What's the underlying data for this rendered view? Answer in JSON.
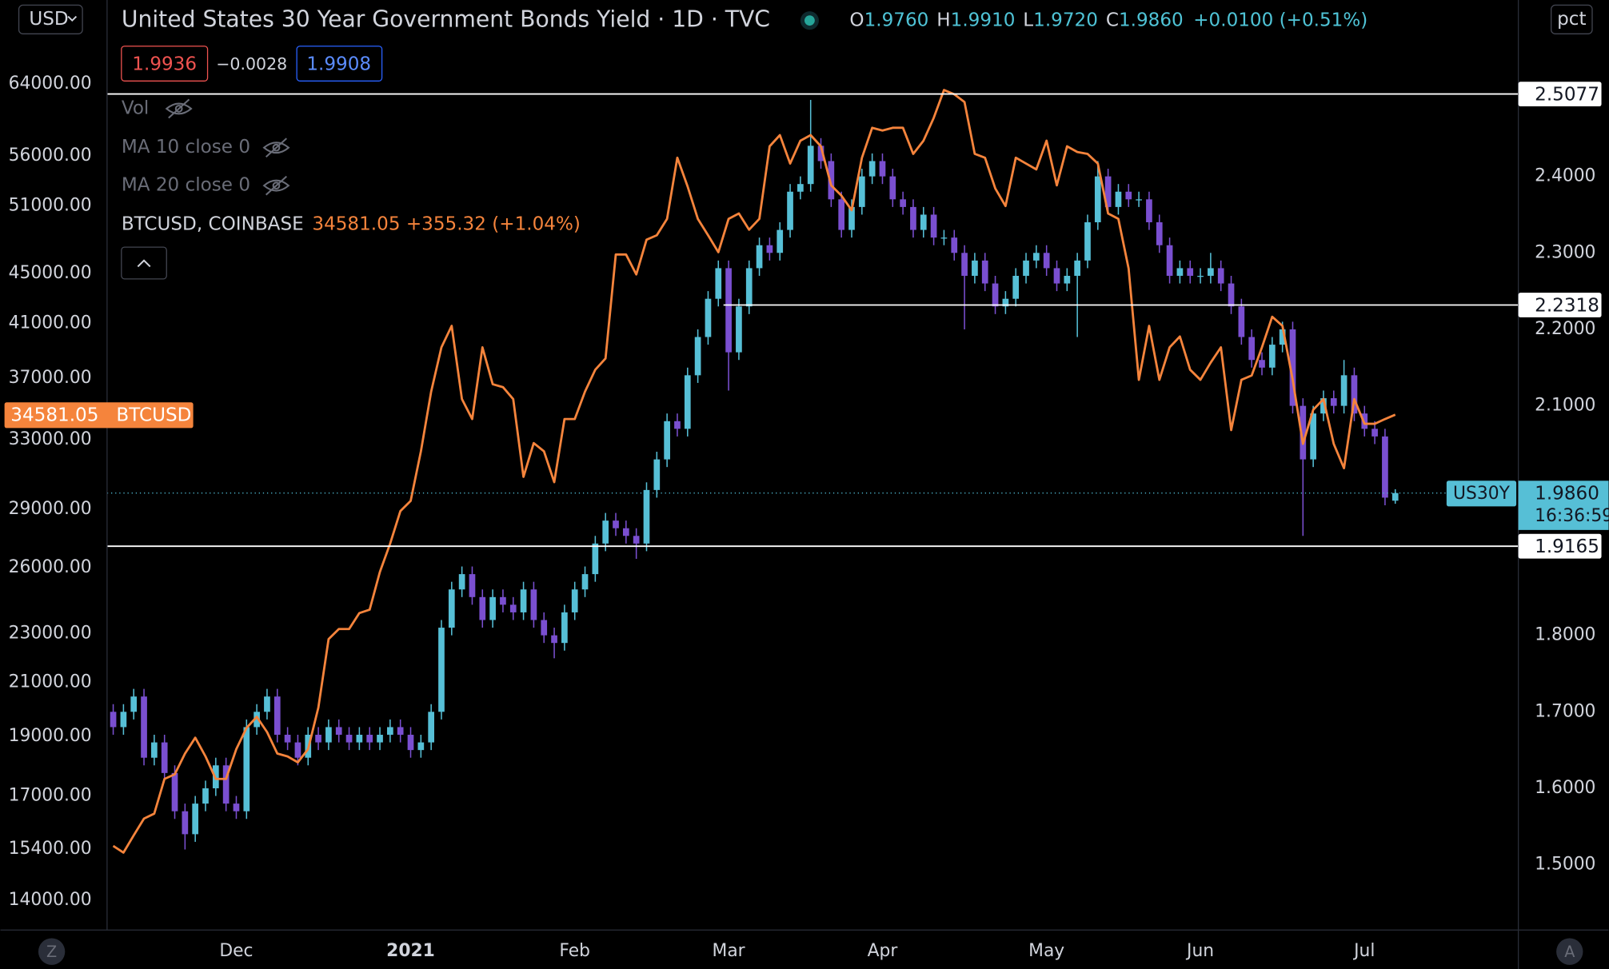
{
  "ui": {
    "title": "United States 30 Year Government Bonds Yield · 1D · TVC",
    "ohlc": [
      [
        "O",
        "1.9760"
      ],
      [
        "H",
        "1.9910"
      ],
      [
        "L",
        "1.9720"
      ],
      [
        "C",
        "1.9860"
      ]
    ],
    "change": "+0.0100 (+0.51%)",
    "bid": "1.9936",
    "spread": "−0.0028",
    "ask": "1.9908",
    "legend": [
      "Vol",
      "MA 10 close 0",
      "MA 20 close 0"
    ],
    "symbol": "BTCUSD, COINBASE",
    "symbol_quote": "34581.05 +355.32 (+1.04%)",
    "currency_button": "USD",
    "scale_button": "pct",
    "left_button": "Z",
    "right_button": "A"
  },
  "chart_data": {
    "type": "candlestick",
    "categories": [
      null,
      null,
      null,
      null,
      null,
      null,
      null,
      null,
      null,
      null,
      null,
      null,
      "Dec",
      null,
      null,
      null,
      null,
      null,
      null,
      null,
      null,
      null,
      null,
      null,
      null,
      null,
      null,
      null,
      null,
      "2021",
      null,
      null,
      null,
      null,
      null,
      null,
      null,
      null,
      null,
      null,
      null,
      null,
      null,
      null,
      null,
      "Feb",
      null,
      null,
      null,
      null,
      null,
      null,
      null,
      null,
      null,
      null,
      null,
      null,
      null,
      null,
      "Mar",
      null,
      null,
      null,
      null,
      null,
      null,
      null,
      null,
      null,
      null,
      null,
      null,
      null,
      null,
      "Apr",
      null,
      null,
      null,
      null,
      null,
      null,
      null,
      null,
      null,
      null,
      null,
      null,
      null,
      null,
      null,
      "May",
      null,
      null,
      null,
      null,
      null,
      null,
      null,
      null,
      null,
      null,
      null,
      null,
      null,
      null,
      "Jun",
      null,
      null,
      null,
      null,
      null,
      null,
      null,
      null,
      null,
      null,
      null,
      null,
      null,
      null,
      null,
      "Jul",
      null,
      null,
      null
    ],
    "ylim": [
      13245,
      74850
    ],
    "log_scale": true,
    "yticks": [
      {
        "value": 64000,
        "label": "64000.00"
      },
      {
        "value": 56000,
        "label": "56000.00"
      },
      {
        "value": 51000,
        "label": "51000.00"
      },
      {
        "value": 45000,
        "label": "45000.00"
      },
      {
        "value": 41000,
        "label": "41000.00"
      },
      {
        "value": 37000,
        "label": "37000.00"
      },
      {
        "value": 33000,
        "label": "33000.00"
      },
      {
        "value": 29000,
        "label": "29000.00"
      },
      {
        "value": 26000,
        "label": "26000.00"
      },
      {
        "value": 23000,
        "label": "23000.00"
      },
      {
        "value": 21000,
        "label": "21000.00"
      },
      {
        "value": 19000,
        "label": "19000.00"
      },
      {
        "value": 17000,
        "label": "17000.00"
      },
      {
        "value": 15400,
        "label": "15400.00"
      },
      {
        "value": 14000,
        "label": "14000.00"
      }
    ],
    "y2lim": [
      1.4147,
      2.6306
    ],
    "y2ticks": [
      {
        "value": 2.4,
        "label": "2.4000"
      },
      {
        "value": 2.3,
        "label": "2.3000"
      },
      {
        "value": 2.2,
        "label": "2.2000"
      },
      {
        "value": 2.1,
        "label": "2.1000"
      },
      {
        "value": 1.8,
        "label": "1.8000"
      },
      {
        "value": 1.7,
        "label": "1.7000"
      },
      {
        "value": 1.6,
        "label": "1.6000"
      },
      {
        "value": 1.5,
        "label": "1.5000"
      }
    ],
    "grid": false,
    "hlines": [
      2.5077,
      2.2318,
      1.9165
    ],
    "series": [
      {
        "name": "US30Y",
        "type": "candlestick",
        "axis": "y2",
        "up_color": "#56bfd6",
        "down_color": "#7a4fd0",
        "last_label": "1.9860",
        "countdown": "16:36:59",
        "open": [
          1.7,
          1.68,
          1.7,
          1.72,
          1.64,
          1.66,
          1.62,
          1.57,
          1.54,
          1.58,
          1.6,
          1.63,
          1.58,
          1.57,
          1.68,
          1.7,
          1.72,
          1.67,
          1.66,
          1.64,
          1.67,
          1.66,
          1.68,
          1.67,
          1.66,
          1.67,
          1.66,
          1.67,
          1.68,
          1.67,
          1.65,
          1.66,
          1.7,
          1.81,
          1.86,
          1.88,
          1.85,
          1.82,
          1.85,
          1.84,
          1.83,
          1.86,
          1.82,
          1.8,
          1.79,
          1.83,
          1.86,
          1.88,
          1.92,
          1.95,
          1.94,
          1.93,
          1.92,
          1.99,
          2.03,
          2.08,
          2.07,
          2.14,
          2.19,
          2.24,
          2.28,
          2.17,
          2.23,
          2.28,
          2.31,
          2.3,
          2.33,
          2.38,
          2.39,
          2.44,
          2.42,
          2.37,
          2.33,
          2.36,
          2.4,
          2.42,
          2.4,
          2.37,
          2.36,
          2.33,
          2.35,
          2.32,
          2.32,
          2.3,
          2.27,
          2.29,
          2.26,
          2.23,
          2.24,
          2.27,
          2.29,
          2.3,
          2.28,
          2.26,
          2.27,
          2.29,
          2.34,
          2.4,
          2.36,
          2.38,
          2.37,
          2.37,
          2.34,
          2.31,
          2.27,
          2.28,
          2.27,
          2.27,
          2.28,
          2.26,
          2.23,
          2.19,
          2.16,
          2.15,
          2.18,
          2.2,
          2.1,
          2.03,
          2.09,
          2.11,
          2.1,
          2.14,
          2.09,
          2.07,
          2.06,
          1.976
        ],
        "high": [
          1.71,
          1.71,
          1.73,
          1.73,
          1.67,
          1.67,
          1.63,
          1.58,
          1.59,
          1.61,
          1.64,
          1.64,
          1.59,
          1.69,
          1.71,
          1.73,
          1.73,
          1.68,
          1.67,
          1.68,
          1.68,
          1.69,
          1.69,
          1.68,
          1.68,
          1.68,
          1.68,
          1.69,
          1.69,
          1.68,
          1.67,
          1.71,
          1.82,
          1.87,
          1.89,
          1.89,
          1.86,
          1.86,
          1.86,
          1.85,
          1.87,
          1.87,
          1.83,
          1.81,
          1.84,
          1.87,
          1.89,
          1.93,
          1.96,
          1.96,
          1.95,
          1.94,
          2.0,
          2.04,
          2.09,
          2.09,
          2.15,
          2.2,
          2.25,
          2.29,
          2.29,
          2.24,
          2.29,
          2.32,
          2.32,
          2.34,
          2.39,
          2.4,
          2.5,
          2.45,
          2.43,
          2.38,
          2.37,
          2.41,
          2.43,
          2.43,
          2.41,
          2.38,
          2.37,
          2.36,
          2.36,
          2.33,
          2.33,
          2.31,
          2.3,
          2.3,
          2.27,
          2.25,
          2.28,
          2.3,
          2.31,
          2.31,
          2.29,
          2.28,
          2.3,
          2.35,
          2.42,
          2.41,
          2.39,
          2.39,
          2.38,
          2.38,
          2.35,
          2.32,
          2.29,
          2.29,
          2.28,
          2.3,
          2.29,
          2.27,
          2.24,
          2.2,
          2.17,
          2.19,
          2.21,
          2.21,
          2.11,
          2.1,
          2.12,
          2.12,
          2.16,
          2.15,
          2.1,
          2.08,
          2.07,
          1.991
        ],
        "low": [
          1.67,
          1.67,
          1.69,
          1.63,
          1.63,
          1.61,
          1.56,
          1.52,
          1.53,
          1.57,
          1.59,
          1.57,
          1.56,
          1.56,
          1.67,
          1.69,
          1.66,
          1.65,
          1.63,
          1.63,
          1.65,
          1.65,
          1.66,
          1.65,
          1.65,
          1.65,
          1.65,
          1.66,
          1.66,
          1.64,
          1.64,
          1.65,
          1.69,
          1.8,
          1.85,
          1.84,
          1.81,
          1.81,
          1.83,
          1.82,
          1.82,
          1.81,
          1.79,
          1.77,
          1.78,
          1.82,
          1.85,
          1.87,
          1.91,
          1.93,
          1.92,
          1.9,
          1.91,
          1.98,
          2.02,
          2.06,
          2.06,
          2.13,
          2.18,
          2.23,
          2.12,
          2.16,
          2.22,
          2.27,
          2.29,
          2.29,
          2.32,
          2.37,
          2.38,
          2.41,
          2.36,
          2.32,
          2.32,
          2.35,
          2.39,
          2.39,
          2.36,
          2.35,
          2.32,
          2.32,
          2.31,
          2.31,
          2.29,
          2.2,
          2.26,
          2.25,
          2.22,
          2.22,
          2.23,
          2.26,
          2.28,
          2.27,
          2.25,
          2.25,
          2.19,
          2.28,
          2.33,
          2.35,
          2.35,
          2.36,
          2.36,
          2.33,
          2.3,
          2.26,
          2.26,
          2.26,
          2.26,
          2.26,
          2.25,
          2.22,
          2.18,
          2.15,
          2.14,
          2.14,
          2.17,
          2.09,
          1.93,
          2.02,
          2.08,
          2.09,
          2.09,
          2.08,
          2.06,
          2.05,
          1.97,
          1.972
        ],
        "close": [
          1.68,
          1.7,
          1.72,
          1.64,
          1.66,
          1.62,
          1.57,
          1.54,
          1.58,
          1.6,
          1.63,
          1.58,
          1.57,
          1.68,
          1.7,
          1.72,
          1.67,
          1.66,
          1.64,
          1.67,
          1.66,
          1.68,
          1.67,
          1.66,
          1.67,
          1.66,
          1.67,
          1.68,
          1.67,
          1.65,
          1.66,
          1.7,
          1.81,
          1.86,
          1.88,
          1.85,
          1.82,
          1.85,
          1.84,
          1.83,
          1.86,
          1.82,
          1.8,
          1.79,
          1.83,
          1.86,
          1.88,
          1.92,
          1.95,
          1.94,
          1.93,
          1.92,
          1.99,
          2.03,
          2.08,
          2.07,
          2.14,
          2.19,
          2.24,
          2.28,
          2.17,
          2.23,
          2.28,
          2.31,
          2.3,
          2.33,
          2.38,
          2.39,
          2.44,
          2.42,
          2.37,
          2.33,
          2.36,
          2.4,
          2.42,
          2.4,
          2.37,
          2.36,
          2.33,
          2.35,
          2.32,
          2.32,
          2.3,
          2.27,
          2.29,
          2.26,
          2.23,
          2.24,
          2.27,
          2.29,
          2.3,
          2.28,
          2.26,
          2.27,
          2.29,
          2.34,
          2.4,
          2.36,
          2.38,
          2.37,
          2.37,
          2.34,
          2.31,
          2.27,
          2.28,
          2.27,
          2.27,
          2.28,
          2.26,
          2.23,
          2.19,
          2.16,
          2.15,
          2.18,
          2.2,
          2.1,
          2.03,
          2.09,
          2.11,
          2.1,
          2.14,
          2.09,
          2.07,
          2.06,
          1.98,
          1.986
        ]
      },
      {
        "name": "BTCUSD",
        "type": "line",
        "axis": "y",
        "color": "#f5843c",
        "values": [
          15490,
          15300,
          15800,
          16300,
          16450,
          17550,
          17700,
          18400,
          18950,
          18300,
          17550,
          17550,
          18550,
          19300,
          19700,
          19150,
          18400,
          18300,
          18100,
          18550,
          20040,
          22770,
          23200,
          23200,
          23900,
          24050,
          25800,
          27200,
          28900,
          29450,
          32300,
          36100,
          39200,
          40800,
          35600,
          34300,
          39200,
          36600,
          36400,
          35600,
          30800,
          32800,
          32300,
          30500,
          34300,
          34300,
          36100,
          37600,
          38400,
          46600,
          46600,
          44900,
          47900,
          48300,
          49800,
          55800,
          52900,
          49800,
          48300,
          46800,
          49800,
          50300,
          48800,
          49800,
          57000,
          58200,
          55200,
          57600,
          58200,
          57000,
          53000,
          52000,
          50600,
          55800,
          59000,
          58700,
          59000,
          59000,
          56200,
          57600,
          60100,
          63300,
          62800,
          61900,
          56200,
          55800,
          52700,
          51000,
          55800,
          55200,
          54600,
          57600,
          53000,
          57000,
          56400,
          56200,
          55200,
          50300,
          49800,
          45400,
          36900,
          40800,
          36900,
          39200,
          40000,
          37600,
          36900,
          38100,
          39200,
          33600,
          36900,
          37200,
          39200,
          41500,
          40800,
          36900,
          32750,
          34900,
          35600,
          32750,
          31300,
          35600,
          34000,
          34000,
          34300,
          34581.05
        ]
      }
    ]
  }
}
